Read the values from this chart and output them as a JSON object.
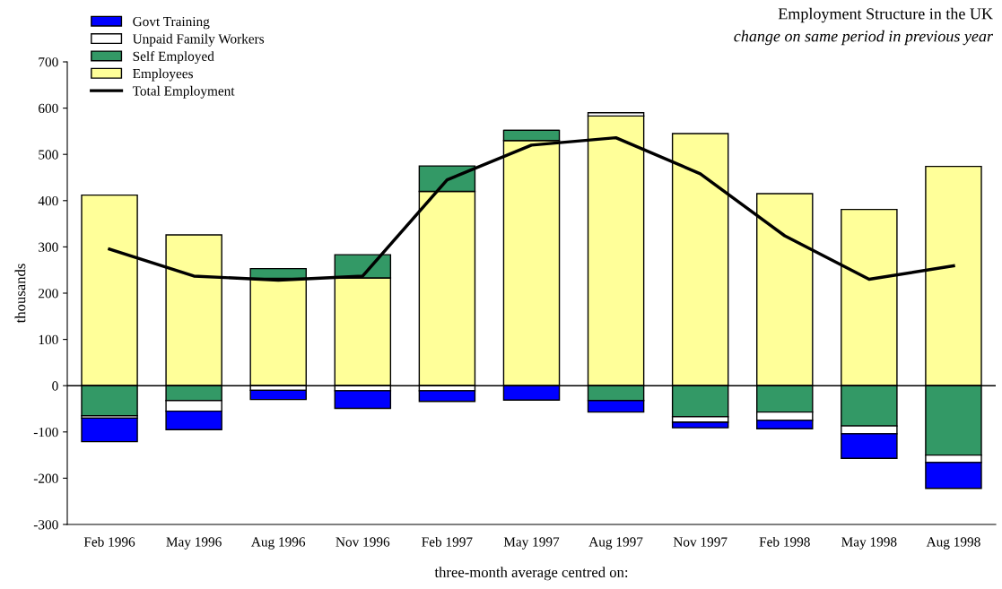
{
  "chart_data": {
    "type": "bar",
    "stacked": true,
    "title": "Employment Structure in the UK",
    "subtitle": "change on same period in previous year",
    "xlabel": "three-month average centred on:",
    "ylabel": "thousands",
    "categories": [
      "Feb 1996",
      "May 1996",
      "Aug 1996",
      "Nov 1996",
      "Feb 1997",
      "May 1997",
      "Aug 1997",
      "Nov 1997",
      "Feb 1998",
      "May 1998",
      "Aug 1998"
    ],
    "series": [
      {
        "name": "Employees",
        "color": "#ffff99",
        "values": [
          412,
          326,
          232,
          233,
          420,
          530,
          583,
          545,
          415,
          381,
          474
        ]
      },
      {
        "name": "Self Employed",
        "color": "#339966",
        "values": [
          -65,
          -32,
          21,
          50,
          55,
          22,
          -32,
          -67,
          -57,
          -87,
          -150
        ]
      },
      {
        "name": "Unpaid Family Workers",
        "color": "#ffffff",
        "values": [
          -5,
          -23,
          -10,
          -11,
          -11,
          null,
          7,
          -12,
          -18,
          -17,
          -16
        ]
      },
      {
        "name": "Govt Training",
        "color": "#0000ff",
        "values": [
          -51,
          -40,
          -20,
          -38,
          -23,
          -31,
          -25,
          -12,
          -18,
          -53,
          -56
        ]
      },
      {
        "name": "Total Employment",
        "type": "line",
        "color": "#000000",
        "values": [
          295,
          237,
          228,
          237,
          445,
          520,
          536,
          458,
          324,
          230,
          259
        ]
      }
    ],
    "ylim": [
      -300,
      700
    ],
    "yticks": [
      -300,
      -200,
      -100,
      0,
      100,
      200,
      300,
      400,
      500,
      600,
      700
    ],
    "ref_lines": [
      {
        "axis": "y",
        "value": 0,
        "color": "#000000"
      }
    ],
    "legend": "top left",
    "grid": false,
    "marker": "none",
    "line_style": "solid"
  }
}
